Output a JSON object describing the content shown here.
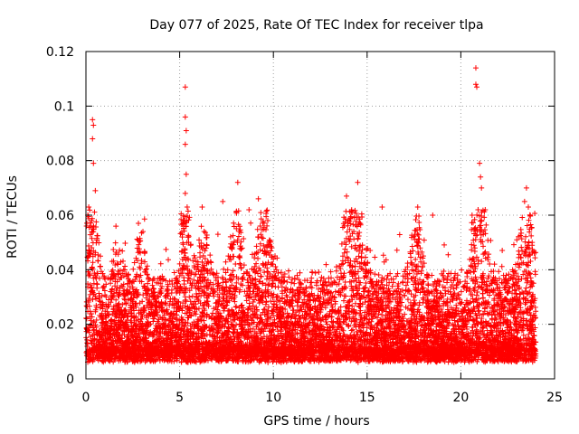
{
  "chart_data": {
    "type": "scatter",
    "title": "Day 077 of 2025, Rate Of TEC Index for receiver tlpa",
    "xlabel": "GPS time / hours",
    "ylabel": "ROTI / TECUs",
    "xlim": [
      0,
      25
    ],
    "ylim": [
      0,
      0.12
    ],
    "xticks": [
      0,
      5,
      10,
      15,
      20,
      25
    ],
    "xtick_labels": [
      "0",
      "5",
      "10",
      "15",
      "20",
      "25"
    ],
    "yticks": [
      0,
      0.02,
      0.04,
      0.06,
      0.08,
      0.1,
      0.12
    ],
    "ytick_labels": [
      "0",
      "0.02",
      "0.04",
      "0.06",
      "0.08",
      "0.1",
      "0.12"
    ],
    "grid": true,
    "marker": "+",
    "series_color": "#ff0000",
    "series": [
      {
        "name": "ROTI",
        "x_range": [
          0,
          24
        ],
        "typical_range": [
          0.003,
          0.03
        ],
        "notable_points": [
          {
            "x": 0.35,
            "y": 0.095
          },
          {
            "x": 0.4,
            "y": 0.093
          },
          {
            "x": 0.35,
            "y": 0.088
          },
          {
            "x": 0.4,
            "y": 0.079
          },
          {
            "x": 0.15,
            "y": 0.063
          },
          {
            "x": 0.1,
            "y": 0.06
          },
          {
            "x": 0.5,
            "y": 0.069
          },
          {
            "x": 0.3,
            "y": 0.058
          },
          {
            "x": 5.3,
            "y": 0.107
          },
          {
            "x": 5.3,
            "y": 0.096
          },
          {
            "x": 5.35,
            "y": 0.091
          },
          {
            "x": 5.3,
            "y": 0.086
          },
          {
            "x": 5.35,
            "y": 0.075
          },
          {
            "x": 5.3,
            "y": 0.068
          },
          {
            "x": 5.4,
            "y": 0.063
          },
          {
            "x": 5.2,
            "y": 0.058
          },
          {
            "x": 2.8,
            "y": 0.057
          },
          {
            "x": 1.6,
            "y": 0.056
          },
          {
            "x": 6.2,
            "y": 0.063
          },
          {
            "x": 7.3,
            "y": 0.065
          },
          {
            "x": 8.1,
            "y": 0.072
          },
          {
            "x": 8.7,
            "y": 0.062
          },
          {
            "x": 9.2,
            "y": 0.066
          },
          {
            "x": 9.7,
            "y": 0.058
          },
          {
            "x": 13.9,
            "y": 0.067
          },
          {
            "x": 14.5,
            "y": 0.072
          },
          {
            "x": 14.2,
            "y": 0.061
          },
          {
            "x": 15.8,
            "y": 0.063
          },
          {
            "x": 17.7,
            "y": 0.063
          },
          {
            "x": 18.5,
            "y": 0.06
          },
          {
            "x": 20.8,
            "y": 0.114
          },
          {
            "x": 20.8,
            "y": 0.108
          },
          {
            "x": 20.85,
            "y": 0.107
          },
          {
            "x": 21.0,
            "y": 0.079
          },
          {
            "x": 21.05,
            "y": 0.074
          },
          {
            "x": 21.1,
            "y": 0.07
          },
          {
            "x": 20.6,
            "y": 0.06
          },
          {
            "x": 21.3,
            "y": 0.062
          },
          {
            "x": 23.5,
            "y": 0.07
          },
          {
            "x": 23.4,
            "y": 0.065
          },
          {
            "x": 23.6,
            "y": 0.063
          },
          {
            "x": 23.7,
            "y": 0.06
          }
        ]
      }
    ]
  }
}
